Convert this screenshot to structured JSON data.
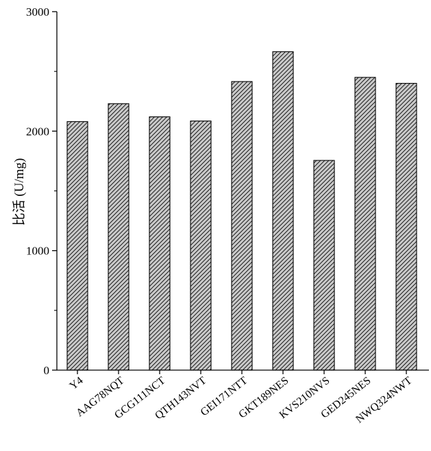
{
  "chart_data": {
    "type": "bar",
    "categories": [
      "Y4",
      "AAG78NQT",
      "GCG111NCT",
      "QTH143NVT",
      "GEI171NTT",
      "GKT189NES",
      "KVS210NVS",
      "GED245NES",
      "NWQ324NWT"
    ],
    "values": [
      2080,
      2230,
      2120,
      2085,
      2415,
      2665,
      1755,
      2450,
      2400
    ],
    "title": "",
    "xlabel": "",
    "ylabel": "比活 (U/mg)",
    "ylim": [
      0,
      3000
    ],
    "y_ticks": [
      0,
      1000,
      2000,
      3000
    ],
    "y_tick_labels": [
      "0",
      "1000",
      "2000",
      "3000"
    ],
    "bar_fill": "#c8c8c8",
    "bar_stroke": "#000000",
    "bar_pattern": "diagonal-hatch",
    "grid": false,
    "legend": "none"
  }
}
